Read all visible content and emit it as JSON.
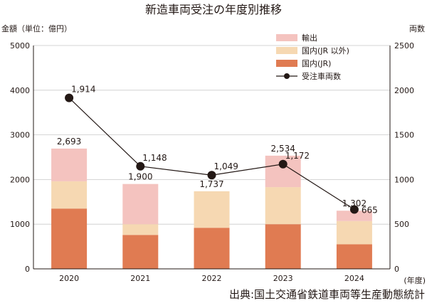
{
  "chart_data": {
    "type": "bar",
    "title": "新造車両受注の年度別推移",
    "ylabel": "金額（単位：億円）",
    "y2label": "両数",
    "xunit": "(年度)",
    "source": "出典:国土交通省鉄道車両等生産動態統計",
    "categories": [
      "2020",
      "2021",
      "2022",
      "2023",
      "2024"
    ],
    "ylim": [
      0,
      5000
    ],
    "y2lim": [
      0,
      2500
    ],
    "yticks": [
      0,
      1000,
      2000,
      3000,
      4000,
      5000
    ],
    "y2ticks": [
      0,
      500,
      1000,
      1500,
      2000,
      2500
    ],
    "stacked": true,
    "series": [
      {
        "name": "国内(JR)",
        "color": "#e07b52",
        "values": [
          1350,
          760,
          920,
          1000,
          550
        ]
      },
      {
        "name": "国内(JR 以外)",
        "color": "#f6d8b2",
        "values": [
          610,
          240,
          817,
          830,
          520
        ]
      },
      {
        "name": "輸出",
        "color": "#f4c3bf",
        "values": [
          733,
          900,
          0,
          704,
          232
        ]
      }
    ],
    "totals": [
      2693,
      1900,
      1737,
      2534,
      1302
    ],
    "total_labels": [
      "2,693",
      "1,900",
      "1,737",
      "2,534",
      "1,302"
    ],
    "line": {
      "name": "受注車両数",
      "color": "#231815",
      "values": [
        1914,
        1148,
        1049,
        1172,
        665
      ],
      "labels": [
        "1,914",
        "1,148",
        "1,049",
        "1,172",
        "665"
      ]
    },
    "legend_position": "top-right"
  }
}
